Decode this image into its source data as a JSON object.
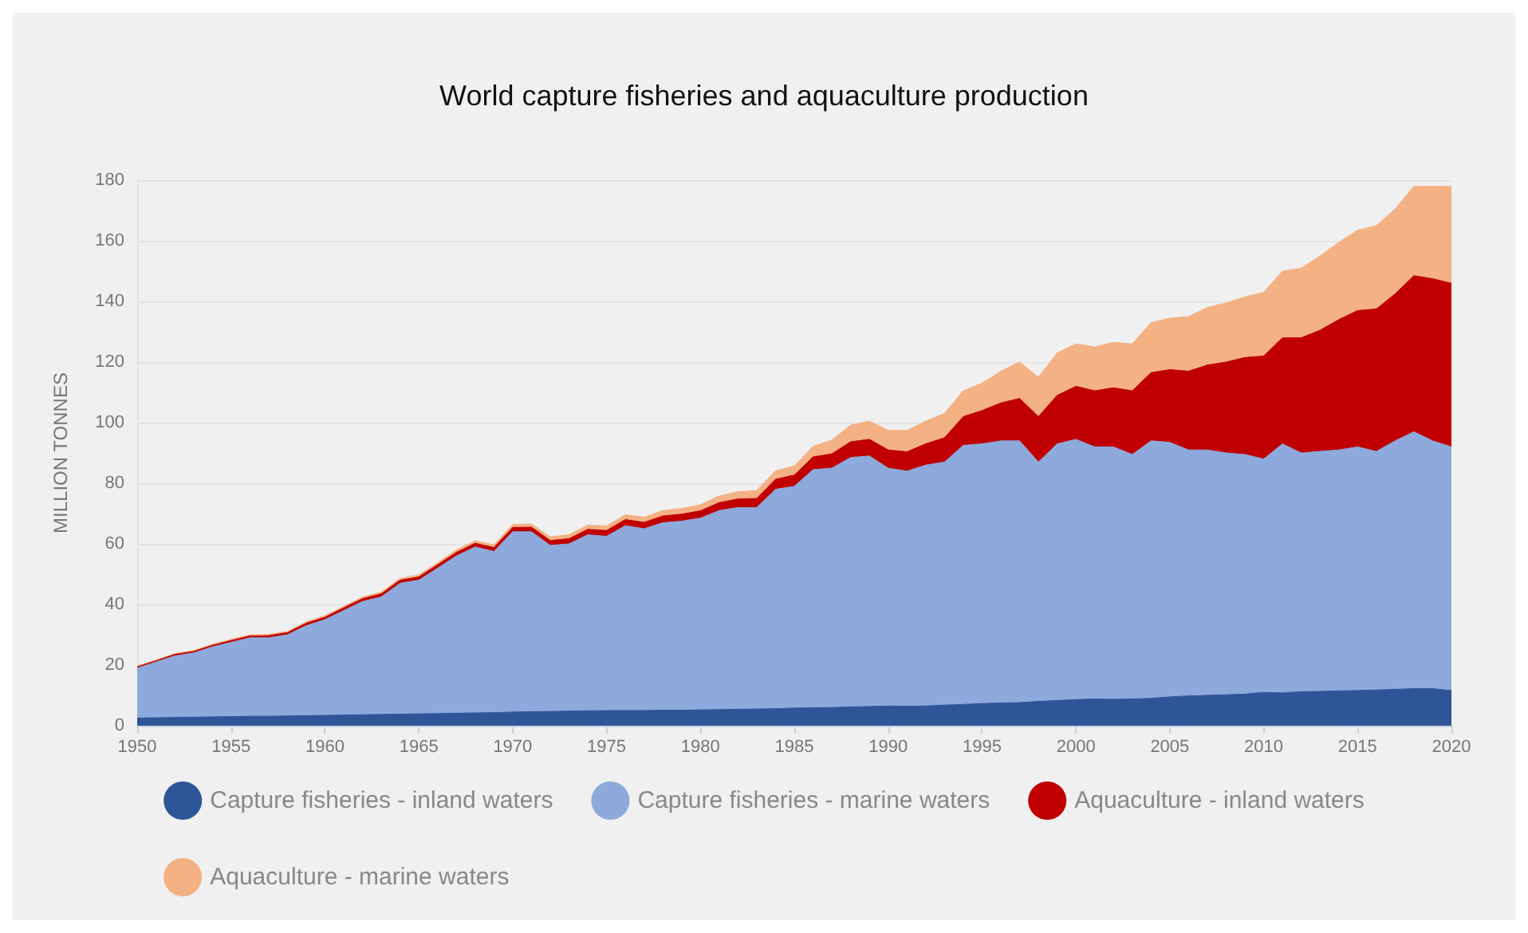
{
  "chart_data": {
    "type": "area",
    "title": "World capture fisheries and aquaculture production",
    "ylabel": "MILLION TONNES",
    "stacked": true,
    "grid": "y",
    "legend": "bottom",
    "marker": "none",
    "x": [
      1950,
      1951,
      1952,
      1953,
      1954,
      1955,
      1956,
      1957,
      1958,
      1959,
      1960,
      1961,
      1962,
      1963,
      1964,
      1965,
      1966,
      1967,
      1968,
      1969,
      1970,
      1971,
      1972,
      1973,
      1974,
      1975,
      1976,
      1977,
      1978,
      1979,
      1980,
      1981,
      1982,
      1983,
      1984,
      1985,
      1986,
      1987,
      1988,
      1989,
      1990,
      1991,
      1992,
      1993,
      1994,
      1995,
      1996,
      1997,
      1998,
      1999,
      2000,
      2001,
      2002,
      2003,
      2004,
      2005,
      2006,
      2007,
      2008,
      2009,
      2010,
      2011,
      2012,
      2013,
      2014,
      2015,
      2016,
      2017,
      2018,
      2019,
      2020
    ],
    "xlim": [
      1950,
      2020
    ],
    "xticks": [
      1950,
      1955,
      1960,
      1965,
      1970,
      1975,
      1980,
      1985,
      1990,
      1995,
      2000,
      2005,
      2010,
      2015,
      2020
    ],
    "ylim": [
      0,
      180
    ],
    "yticks": [
      0,
      20,
      40,
      60,
      80,
      100,
      120,
      140,
      160,
      180
    ],
    "series": [
      {
        "name": "Capture fisheries - inland waters",
        "color": "#2e5597",
        "values": [
          2.5,
          2.6,
          2.7,
          2.8,
          2.9,
          3.0,
          3.1,
          3.1,
          3.2,
          3.3,
          3.4,
          3.5,
          3.6,
          3.7,
          3.8,
          3.9,
          4.0,
          4.1,
          4.2,
          4.3,
          4.5,
          4.6,
          4.7,
          4.8,
          4.9,
          5.0,
          5.0,
          5.0,
          5.1,
          5.1,
          5.2,
          5.3,
          5.4,
          5.5,
          5.6,
          5.8,
          5.9,
          6.0,
          6.2,
          6.3,
          6.5,
          6.4,
          6.5,
          6.8,
          7.0,
          7.3,
          7.5,
          7.6,
          8.0,
          8.3,
          8.6,
          8.8,
          8.7,
          8.8,
          9.0,
          9.5,
          9.8,
          10.0,
          10.2,
          10.4,
          11.0,
          10.8,
          11.2,
          11.3,
          11.5,
          11.6,
          11.8,
          12.0,
          12.2,
          12.2,
          11.6
        ]
      },
      {
        "name": "Capture fisheries - marine waters",
        "color": "#8ea9db",
        "values": [
          16.5,
          18.4,
          20.3,
          21.2,
          23.1,
          24.5,
          25.9,
          25.9,
          26.8,
          29.7,
          31.6,
          34.5,
          37.4,
          38.8,
          43.2,
          44.1,
          48.0,
          51.9,
          54.8,
          53.2,
          59.5,
          59.4,
          54.8,
          55.2,
          58.1,
          57.5,
          61.0,
          60.0,
          61.9,
          62.4,
          63.3,
          65.7,
          66.6,
          66.5,
          72.4,
          73.2,
          78.6,
          79.0,
          82.3,
          82.7,
          78.5,
          77.6,
          79.5,
          80.2,
          85.5,
          85.7,
          86.5,
          86.4,
          79.0,
          84.7,
          85.9,
          83.2,
          83.3,
          80.7,
          85.0,
          84.0,
          81.2,
          81.0,
          79.8,
          79.1,
          77.0,
          82.2,
          78.8,
          79.2,
          79.5,
          80.4,
          78.7,
          82.0,
          84.8,
          81.8,
          80.4
        ]
      },
      {
        "name": "Aquaculture - inland waters",
        "color": "#c00000",
        "values": [
          0.4,
          0.4,
          0.5,
          0.5,
          0.5,
          0.6,
          0.6,
          0.7,
          0.7,
          0.8,
          0.8,
          0.9,
          0.9,
          1.0,
          1.0,
          1.1,
          1.1,
          1.2,
          1.2,
          1.3,
          1.4,
          1.5,
          1.6,
          1.7,
          1.8,
          1.9,
          2.0,
          2.1,
          2.2,
          2.3,
          2.4,
          2.6,
          2.8,
          3.0,
          3.3,
          3.7,
          4.2,
          4.7,
          5.2,
          5.5,
          6.0,
          6.4,
          7.0,
          8.0,
          9.5,
          11.0,
          12.5,
          14.0,
          15.0,
          16.0,
          17.5,
          18.5,
          19.5,
          21.0,
          22.5,
          24.0,
          26.0,
          28.0,
          30.0,
          32.0,
          34.0,
          35.0,
          38.0,
          40.0,
          43.0,
          45.0,
          47.0,
          48.5,
          51.5,
          53.5,
          54.0
        ]
      },
      {
        "name": "Aquaculture - marine waters",
        "color": "#f4b183",
        "values": [
          0.3,
          0.3,
          0.3,
          0.3,
          0.4,
          0.4,
          0.4,
          0.4,
          0.4,
          0.5,
          0.5,
          0.5,
          0.6,
          0.6,
          0.6,
          0.7,
          0.7,
          0.8,
          0.8,
          0.9,
          1.0,
          1.1,
          1.2,
          1.3,
          1.4,
          1.5,
          1.6,
          1.7,
          1.8,
          1.9,
          2.0,
          2.2,
          2.4,
          2.6,
          2.8,
          3.0,
          3.5,
          4.5,
          5.5,
          6.0,
          6.5,
          7.0,
          7.5,
          8.0,
          8.5,
          9.0,
          10.5,
          12.0,
          13.0,
          14.0,
          14.0,
          14.5,
          15.0,
          15.5,
          16.5,
          17.0,
          18.0,
          19.0,
          19.5,
          20.0,
          21.0,
          22.0,
          23.0,
          24.5,
          25.5,
          26.5,
          27.5,
          28.0,
          29.5,
          30.5,
          32.0
        ]
      }
    ]
  }
}
